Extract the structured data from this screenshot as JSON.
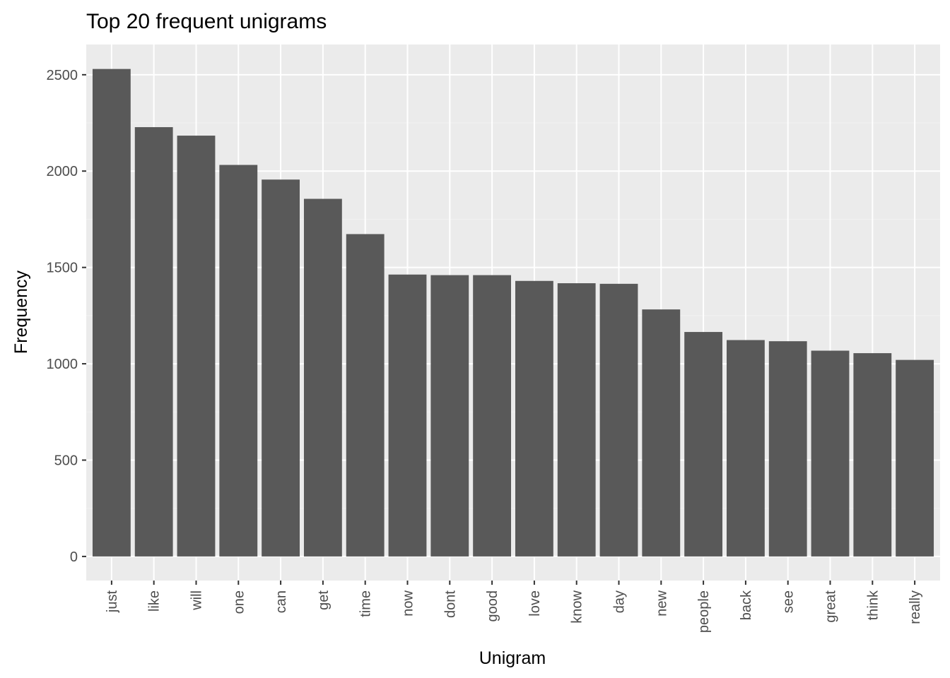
{
  "chart_data": {
    "type": "bar",
    "title": "Top 20 frequent unigrams",
    "xlabel": "Unigram",
    "ylabel": "Frequency",
    "categories": [
      "just",
      "like",
      "will",
      "one",
      "can",
      "get",
      "time",
      "now",
      "dont",
      "good",
      "love",
      "know",
      "day",
      "new",
      "people",
      "back",
      "see",
      "great",
      "think",
      "really"
    ],
    "values": [
      2530,
      2228,
      2184,
      2032,
      1956,
      1856,
      1673,
      1463,
      1460,
      1460,
      1430,
      1418,
      1415,
      1282,
      1165,
      1123,
      1117,
      1068,
      1055,
      1020
    ],
    "ylim": [
      -125,
      2657
    ],
    "yticks": [
      0,
      500,
      1000,
      1500,
      2000,
      2500
    ],
    "grid": true,
    "colors": {
      "bar": "#595959",
      "panel": "#ebebeb",
      "grid_major": "#ffffff",
      "grid_minor": "#f2f2f2",
      "tick": "#333333"
    }
  }
}
